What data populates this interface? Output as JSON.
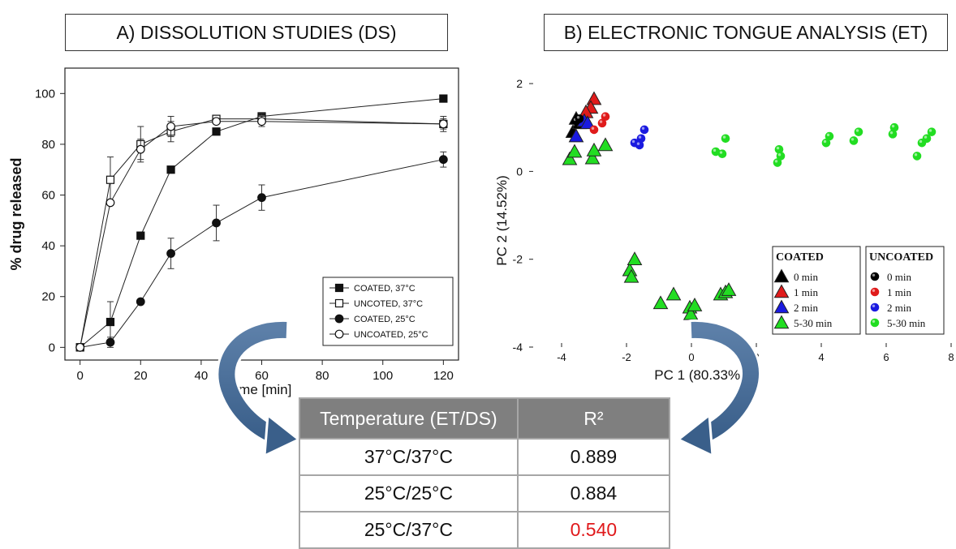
{
  "panel_a": {
    "title": "A) DISSOLUTION STUDIES (DS)"
  },
  "panel_b": {
    "title": "B) ELECTRONIC TONGUE ANALYSIS (ET)"
  },
  "chart_data": [
    {
      "type": "line",
      "title": "A) DISSOLUTION STUDIES (DS)",
      "xlabel": "time [min]",
      "ylabel": "% drug released",
      "xlim": [
        -5,
        125
      ],
      "ylim": [
        -5,
        110
      ],
      "xticks": [
        0,
        20,
        40,
        60,
        80,
        100,
        120
      ],
      "yticks": [
        0,
        20,
        40,
        60,
        80,
        100
      ],
      "legend_position": "bottom-right",
      "grid": false,
      "series": [
        {
          "name": "COATED, 37°C",
          "marker": "filled-square",
          "x": [
            0,
            10,
            20,
            30,
            45,
            60,
            120
          ],
          "y": [
            0,
            10,
            44,
            70,
            85,
            91,
            98
          ],
          "err": [
            0,
            8,
            0,
            0,
            0,
            0,
            0
          ]
        },
        {
          "name": "UNCOTED, 37°C",
          "marker": "open-square",
          "x": [
            0,
            10,
            20,
            30,
            45,
            60,
            120
          ],
          "y": [
            0,
            66,
            80,
            85,
            90,
            90,
            88
          ],
          "err": [
            0,
            9,
            7,
            4,
            0,
            2,
            2
          ]
        },
        {
          "name": "COATED, 25°C",
          "marker": "filled-circle",
          "x": [
            0,
            10,
            20,
            30,
            45,
            60,
            120
          ],
          "y": [
            0,
            2,
            18,
            37,
            49,
            59,
            74
          ],
          "err": [
            0,
            2,
            0,
            6,
            7,
            5,
            3
          ]
        },
        {
          "name": "UNCOATED, 25°C",
          "marker": "open-circle",
          "x": [
            0,
            10,
            20,
            30,
            45,
            60,
            120
          ],
          "y": [
            0,
            57,
            78,
            87,
            89,
            89,
            88
          ],
          "err": [
            0,
            0,
            4,
            4,
            0,
            2,
            3
          ]
        }
      ]
    },
    {
      "type": "scatter",
      "title": "B) ELECTRONIC TONGUE ANALYSIS (ET)",
      "xlabel": "PC 1 (80.33%)",
      "ylabel": "PC 2 (14.52%)",
      "xlim": [
        -5,
        8
      ],
      "ylim": [
        -4,
        2.5
      ],
      "xticks": [
        -4,
        -2,
        0,
        2,
        4,
        6,
        8
      ],
      "yticks": [
        -4,
        -2,
        0,
        2
      ],
      "legend_groups": [
        "COATED",
        "UNCOATED"
      ],
      "series": [
        {
          "name": "0 min",
          "group": "COATED",
          "marker": "triangle",
          "color": "#000000",
          "points": [
            [
              -3.65,
              0.9
            ],
            [
              -3.45,
              1.1
            ],
            [
              -3.55,
              1.2
            ]
          ]
        },
        {
          "name": "1 min",
          "group": "COATED",
          "marker": "triangle",
          "color": "#e01b1b",
          "points": [
            [
              -3.0,
              1.65
            ],
            [
              -3.1,
              1.45
            ],
            [
              -3.25,
              1.35
            ]
          ]
        },
        {
          "name": "2 min",
          "group": "COATED",
          "marker": "triangle",
          "color": "#1a1ae0",
          "points": [
            [
              -3.55,
              0.8
            ],
            [
              -3.3,
              1.15
            ],
            [
              -3.2,
              1.1
            ]
          ]
        },
        {
          "name": "5-30 min",
          "group": "COATED",
          "marker": "triangle",
          "color": "#22dd22",
          "points": [
            [
              -3.75,
              0.28
            ],
            [
              -3.6,
              0.45
            ],
            [
              -3.05,
              0.3
            ],
            [
              -3.0,
              0.48
            ],
            [
              -2.65,
              0.6
            ],
            [
              -1.9,
              -2.25
            ],
            [
              -1.75,
              -2.0
            ],
            [
              -1.85,
              -2.4
            ],
            [
              -0.95,
              -3.0
            ],
            [
              -0.55,
              -2.8
            ],
            [
              -0.05,
              -3.1
            ],
            [
              -0.02,
              -3.25
            ],
            [
              0.1,
              -3.05
            ],
            [
              0.9,
              -2.8
            ],
            [
              1.05,
              -2.75
            ],
            [
              1.15,
              -2.7
            ]
          ]
        },
        {
          "name": "0 min",
          "group": "UNCOATED",
          "marker": "circle",
          "color": "#000000",
          "points": [
            [
              -3.55,
              1.15
            ],
            [
              -3.45,
              1.2
            ]
          ]
        },
        {
          "name": "1 min",
          "group": "UNCOATED",
          "marker": "circle",
          "color": "#e01b1b",
          "points": [
            [
              -3.0,
              0.95
            ],
            [
              -2.65,
              1.25
            ],
            [
              -2.75,
              1.1
            ]
          ]
        },
        {
          "name": "2 min",
          "group": "UNCOATED",
          "marker": "circle",
          "color": "#1a1ae0",
          "points": [
            [
              -1.75,
              0.65
            ],
            [
              -1.55,
              0.75
            ],
            [
              -1.45,
              0.95
            ],
            [
              -1.6,
              0.6
            ]
          ]
        },
        {
          "name": "5-30 min",
          "group": "UNCOATED",
          "marker": "circle",
          "color": "#22dd22",
          "points": [
            [
              0.75,
              0.45
            ],
            [
              0.95,
              0.4
            ],
            [
              1.05,
              0.75
            ],
            [
              2.65,
              0.2
            ],
            [
              2.7,
              0.5
            ],
            [
              2.75,
              0.35
            ],
            [
              4.15,
              0.65
            ],
            [
              4.25,
              0.8
            ],
            [
              5.0,
              0.7
            ],
            [
              5.15,
              0.9
            ],
            [
              6.2,
              0.85
            ],
            [
              6.25,
              1.0
            ],
            [
              6.95,
              0.35
            ],
            [
              7.1,
              0.65
            ],
            [
              7.25,
              0.75
            ],
            [
              7.4,
              0.9
            ]
          ]
        }
      ]
    }
  ],
  "r2_table": {
    "headers": [
      "Temperature (ET/DS)",
      "R²"
    ],
    "rows": [
      {
        "temperature": "37°C/37°C",
        "r2": "0.889"
      },
      {
        "temperature": "25°C/25°C",
        "r2": "0.884"
      },
      {
        "temperature": "25°C/37°C",
        "r2": "0.540",
        "highlight": "#e0191b"
      }
    ]
  }
}
